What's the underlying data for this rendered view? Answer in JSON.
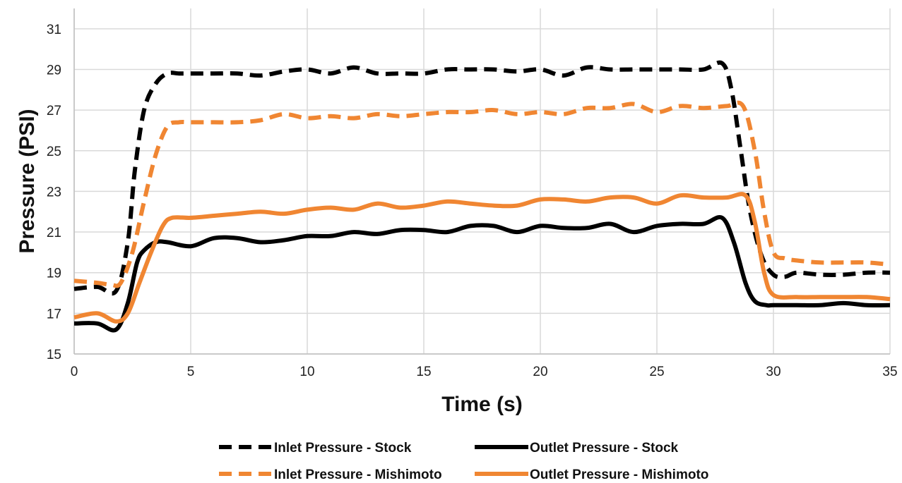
{
  "chart_data": {
    "type": "line",
    "xlabel": "Time (s)",
    "ylabel": "Pressure (PSI)",
    "xlim": [
      0,
      35
    ],
    "ylim": [
      15,
      32
    ],
    "x_ticks": [
      0,
      5,
      10,
      15,
      20,
      25,
      30,
      35
    ],
    "y_ticks": [
      15,
      17,
      19,
      21,
      23,
      25,
      27,
      29,
      31
    ],
    "grid": "vertical and horizontal",
    "legend_position": "bottom",
    "series": [
      {
        "name": "Inlet Pressure - Stock",
        "color": "#000000",
        "dash": "dashed",
        "points": [
          [
            0,
            18.2
          ],
          [
            1,
            18.3
          ],
          [
            1.8,
            18.1
          ],
          [
            2.3,
            20.5
          ],
          [
            2.6,
            24.0
          ],
          [
            3,
            27.0
          ],
          [
            3.5,
            28.3
          ],
          [
            4,
            28.8
          ],
          [
            4.5,
            28.8
          ],
          [
            5,
            28.8
          ],
          [
            6,
            28.8
          ],
          [
            7,
            28.8
          ],
          [
            8,
            28.7
          ],
          [
            9,
            28.9
          ],
          [
            10,
            29.0
          ],
          [
            11,
            28.8
          ],
          [
            12,
            29.1
          ],
          [
            13,
            28.8
          ],
          [
            14,
            28.8
          ],
          [
            15,
            28.8
          ],
          [
            16,
            29.0
          ],
          [
            17,
            29.0
          ],
          [
            18,
            29.0
          ],
          [
            19,
            28.9
          ],
          [
            20,
            29.0
          ],
          [
            21,
            28.7
          ],
          [
            22,
            29.1
          ],
          [
            23,
            29.0
          ],
          [
            24,
            29.0
          ],
          [
            25,
            29.0
          ],
          [
            26,
            29.0
          ],
          [
            27,
            29.0
          ],
          [
            27.8,
            29.3
          ],
          [
            28.2,
            28.0
          ],
          [
            28.6,
            25.0
          ],
          [
            29,
            22.0
          ],
          [
            29.5,
            19.8
          ],
          [
            30,
            18.9
          ],
          [
            30.5,
            18.8
          ],
          [
            31,
            19.0
          ],
          [
            32,
            18.9
          ],
          [
            33,
            18.9
          ],
          [
            34,
            19.0
          ],
          [
            35,
            19.0
          ]
        ]
      },
      {
        "name": "Outlet Pressure - Stock",
        "color": "#000000",
        "dash": "solid",
        "points": [
          [
            0,
            16.5
          ],
          [
            1,
            16.5
          ],
          [
            1.8,
            16.2
          ],
          [
            2.3,
            17.5
          ],
          [
            2.7,
            19.5
          ],
          [
            3,
            20.1
          ],
          [
            3.5,
            20.5
          ],
          [
            4,
            20.5
          ],
          [
            5,
            20.3
          ],
          [
            6,
            20.7
          ],
          [
            7,
            20.7
          ],
          [
            8,
            20.5
          ],
          [
            9,
            20.6
          ],
          [
            10,
            20.8
          ],
          [
            11,
            20.8
          ],
          [
            12,
            21.0
          ],
          [
            13,
            20.9
          ],
          [
            14,
            21.1
          ],
          [
            15,
            21.1
          ],
          [
            16,
            21.0
          ],
          [
            17,
            21.3
          ],
          [
            18,
            21.3
          ],
          [
            19,
            21.0
          ],
          [
            20,
            21.3
          ],
          [
            21,
            21.2
          ],
          [
            22,
            21.2
          ],
          [
            23,
            21.4
          ],
          [
            24,
            21.0
          ],
          [
            25,
            21.3
          ],
          [
            26,
            21.4
          ],
          [
            27,
            21.4
          ],
          [
            27.8,
            21.7
          ],
          [
            28.3,
            20.5
          ],
          [
            28.8,
            18.5
          ],
          [
            29.2,
            17.6
          ],
          [
            29.7,
            17.4
          ],
          [
            30,
            17.4
          ],
          [
            31,
            17.4
          ],
          [
            32,
            17.4
          ],
          [
            33,
            17.5
          ],
          [
            34,
            17.4
          ],
          [
            35,
            17.4
          ]
        ]
      },
      {
        "name": "Inlet Pressure - Mishimoto",
        "color": "#F08632",
        "dash": "dashed",
        "points": [
          [
            0,
            18.6
          ],
          [
            1,
            18.5
          ],
          [
            1.6,
            18.4
          ],
          [
            2,
            18.5
          ],
          [
            2.5,
            20.0
          ],
          [
            3,
            22.5
          ],
          [
            3.5,
            24.8
          ],
          [
            4,
            26.2
          ],
          [
            4.5,
            26.4
          ],
          [
            5,
            26.4
          ],
          [
            6,
            26.4
          ],
          [
            7,
            26.4
          ],
          [
            8,
            26.5
          ],
          [
            9,
            26.8
          ],
          [
            10,
            26.6
          ],
          [
            11,
            26.7
          ],
          [
            12,
            26.6
          ],
          [
            13,
            26.8
          ],
          [
            14,
            26.7
          ],
          [
            15,
            26.8
          ],
          [
            16,
            26.9
          ],
          [
            17,
            26.9
          ],
          [
            18,
            27.0
          ],
          [
            19,
            26.8
          ],
          [
            20,
            26.9
          ],
          [
            21,
            26.8
          ],
          [
            22,
            27.1
          ],
          [
            23,
            27.1
          ],
          [
            24,
            27.3
          ],
          [
            25,
            26.9
          ],
          [
            26,
            27.2
          ],
          [
            27,
            27.1
          ],
          [
            28,
            27.2
          ],
          [
            28.7,
            27.2
          ],
          [
            29.2,
            25.0
          ],
          [
            29.6,
            22.0
          ],
          [
            30,
            20.0
          ],
          [
            30.5,
            19.7
          ],
          [
            31,
            19.6
          ],
          [
            32,
            19.5
          ],
          [
            33,
            19.5
          ],
          [
            34,
            19.5
          ],
          [
            35,
            19.4
          ]
        ]
      },
      {
        "name": "Outlet Pressure - Mishimoto",
        "color": "#F08632",
        "dash": "solid",
        "points": [
          [
            0,
            16.8
          ],
          [
            1,
            17.0
          ],
          [
            1.8,
            16.6
          ],
          [
            2.3,
            17.0
          ],
          [
            2.8,
            18.5
          ],
          [
            3.3,
            20.0
          ],
          [
            3.8,
            21.3
          ],
          [
            4.2,
            21.7
          ],
          [
            5,
            21.7
          ],
          [
            6,
            21.8
          ],
          [
            7,
            21.9
          ],
          [
            8,
            22.0
          ],
          [
            9,
            21.9
          ],
          [
            10,
            22.1
          ],
          [
            11,
            22.2
          ],
          [
            12,
            22.1
          ],
          [
            13,
            22.4
          ],
          [
            14,
            22.2
          ],
          [
            15,
            22.3
          ],
          [
            16,
            22.5
          ],
          [
            17,
            22.4
          ],
          [
            18,
            22.3
          ],
          [
            19,
            22.3
          ],
          [
            20,
            22.6
          ],
          [
            21,
            22.6
          ],
          [
            22,
            22.5
          ],
          [
            23,
            22.7
          ],
          [
            24,
            22.7
          ],
          [
            25,
            22.4
          ],
          [
            26,
            22.8
          ],
          [
            27,
            22.7
          ],
          [
            28,
            22.7
          ],
          [
            28.8,
            22.8
          ],
          [
            29.2,
            21.5
          ],
          [
            29.6,
            19.0
          ],
          [
            30,
            17.9
          ],
          [
            31,
            17.8
          ],
          [
            32,
            17.8
          ],
          [
            33,
            17.8
          ],
          [
            34,
            17.8
          ],
          [
            35,
            17.7
          ]
        ]
      }
    ],
    "legend": [
      {
        "label": "Inlet Pressure - Stock",
        "color": "#000000",
        "dash": "dashed"
      },
      {
        "label": "Outlet Pressure - Stock",
        "color": "#000000",
        "dash": "solid"
      },
      {
        "label": "Inlet Pressure - Mishimoto",
        "color": "#F08632",
        "dash": "dashed"
      },
      {
        "label": "Outlet Pressure - Mishimoto",
        "color": "#F08632",
        "dash": "solid"
      }
    ]
  }
}
